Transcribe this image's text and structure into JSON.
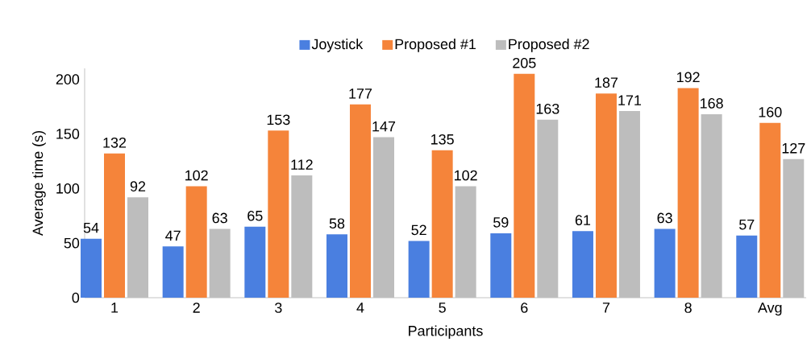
{
  "chart_data": {
    "type": "bar",
    "xlabel": "Participants",
    "ylabel": "Average time (s)",
    "categories": [
      "1",
      "2",
      "3",
      "4",
      "5",
      "6",
      "7",
      "8",
      "Avg"
    ],
    "series": [
      {
        "name": "Joystick",
        "color": "#4a7fe0",
        "values": [
          54,
          47,
          65,
          58,
          52,
          59,
          61,
          63,
          57
        ]
      },
      {
        "name": "Proposed #1",
        "color": "#f5843a",
        "values": [
          132,
          102,
          153,
          177,
          135,
          205,
          187,
          192,
          160
        ]
      },
      {
        "name": "Proposed #2",
        "color": "#bdbdbd",
        "values": [
          92,
          63,
          112,
          147,
          102,
          163,
          171,
          168,
          127
        ]
      }
    ],
    "ylim": [
      0,
      210
    ],
    "yticks": [
      0,
      50,
      100,
      150,
      200
    ],
    "data_labels": true,
    "legend": "top",
    "grid": false
  }
}
